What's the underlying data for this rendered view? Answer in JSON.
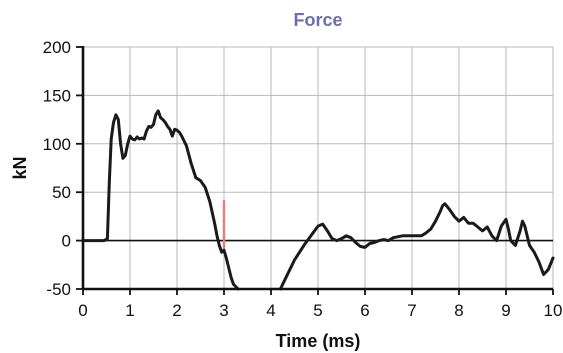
{
  "chart_data": {
    "type": "line",
    "title": "Force",
    "xlabel": "Time (ms)",
    "ylabel": "kN",
    "xlim": [
      0,
      10
    ],
    "ylim": [
      -50,
      200
    ],
    "xticks": [
      "0",
      "1",
      "2",
      "3",
      "4",
      "5",
      "6",
      "7",
      "8",
      "9",
      "10"
    ],
    "yticks": [
      "-50",
      "0",
      "50",
      "100",
      "150",
      "200"
    ],
    "grid": true,
    "marker_time": 3.0,
    "marker_range": [
      -10,
      42
    ],
    "colors": {
      "title": "#6a6fb0",
      "series": "#1a1a1a",
      "grid": "#b8b8b8",
      "marker": "#ee7777",
      "axis": "#111111"
    },
    "series": [
      {
        "x": [
          0.0,
          0.25,
          0.45,
          0.52,
          0.56,
          0.6,
          0.65,
          0.7,
          0.75,
          0.8,
          0.85,
          0.9,
          0.95,
          1.0,
          1.05,
          1.1,
          1.15,
          1.2,
          1.25,
          1.3,
          1.35,
          1.4,
          1.45,
          1.5,
          1.55,
          1.6,
          1.65,
          1.7,
          1.75,
          1.8,
          1.85,
          1.9,
          1.95,
          2.0,
          2.05,
          2.1,
          2.2,
          2.3,
          2.4,
          2.5,
          2.6,
          2.7,
          2.8,
          2.85,
          2.9,
          2.95,
          3.0,
          3.05,
          3.1,
          3.15,
          3.2,
          3.3,
          3.4,
          3.45,
          3.5,
          4.2,
          4.3,
          4.5,
          4.7,
          4.85,
          5.0,
          5.1,
          5.2,
          5.3,
          5.4,
          5.5,
          5.6,
          5.7,
          5.8,
          5.9,
          6.0,
          6.1,
          6.2,
          6.3,
          6.4,
          6.5,
          6.6,
          6.8,
          7.0,
          7.2,
          7.3,
          7.4,
          7.5,
          7.6,
          7.65,
          7.7,
          7.8,
          7.9,
          8.0,
          8.1,
          8.2,
          8.3,
          8.4,
          8.5,
          8.6,
          8.7,
          8.8,
          8.9,
          9.0,
          9.05,
          9.1,
          9.2,
          9.3,
          9.35,
          9.4,
          9.5,
          9.6,
          9.7,
          9.8,
          9.9,
          10.0
        ],
        "y": [
          0,
          0,
          0,
          2,
          60,
          105,
          122,
          130,
          125,
          100,
          85,
          88,
          100,
          108,
          105,
          104,
          107,
          105,
          106,
          105,
          113,
          118,
          117,
          120,
          130,
          134,
          127,
          125,
          122,
          118,
          115,
          108,
          115,
          114,
          112,
          108,
          98,
          80,
          65,
          62,
          55,
          40,
          18,
          5,
          -5,
          -12,
          -10,
          -18,
          -28,
          -38,
          -45,
          -50,
          -50,
          -50,
          -50,
          -50,
          -40,
          -20,
          -5,
          5,
          15,
          17,
          10,
          2,
          0,
          2,
          5,
          3,
          -2,
          -6,
          -7,
          -3,
          -2,
          0,
          1,
          0,
          3,
          5,
          5,
          5,
          8,
          12,
          20,
          30,
          36,
          38,
          32,
          25,
          20,
          24,
          18,
          18,
          14,
          10,
          14,
          5,
          0,
          15,
          22,
          12,
          0,
          -5,
          10,
          20,
          15,
          -5,
          -12,
          -22,
          -35,
          -30,
          -18
        ],
        "description_note": ""
      }
    ]
  }
}
